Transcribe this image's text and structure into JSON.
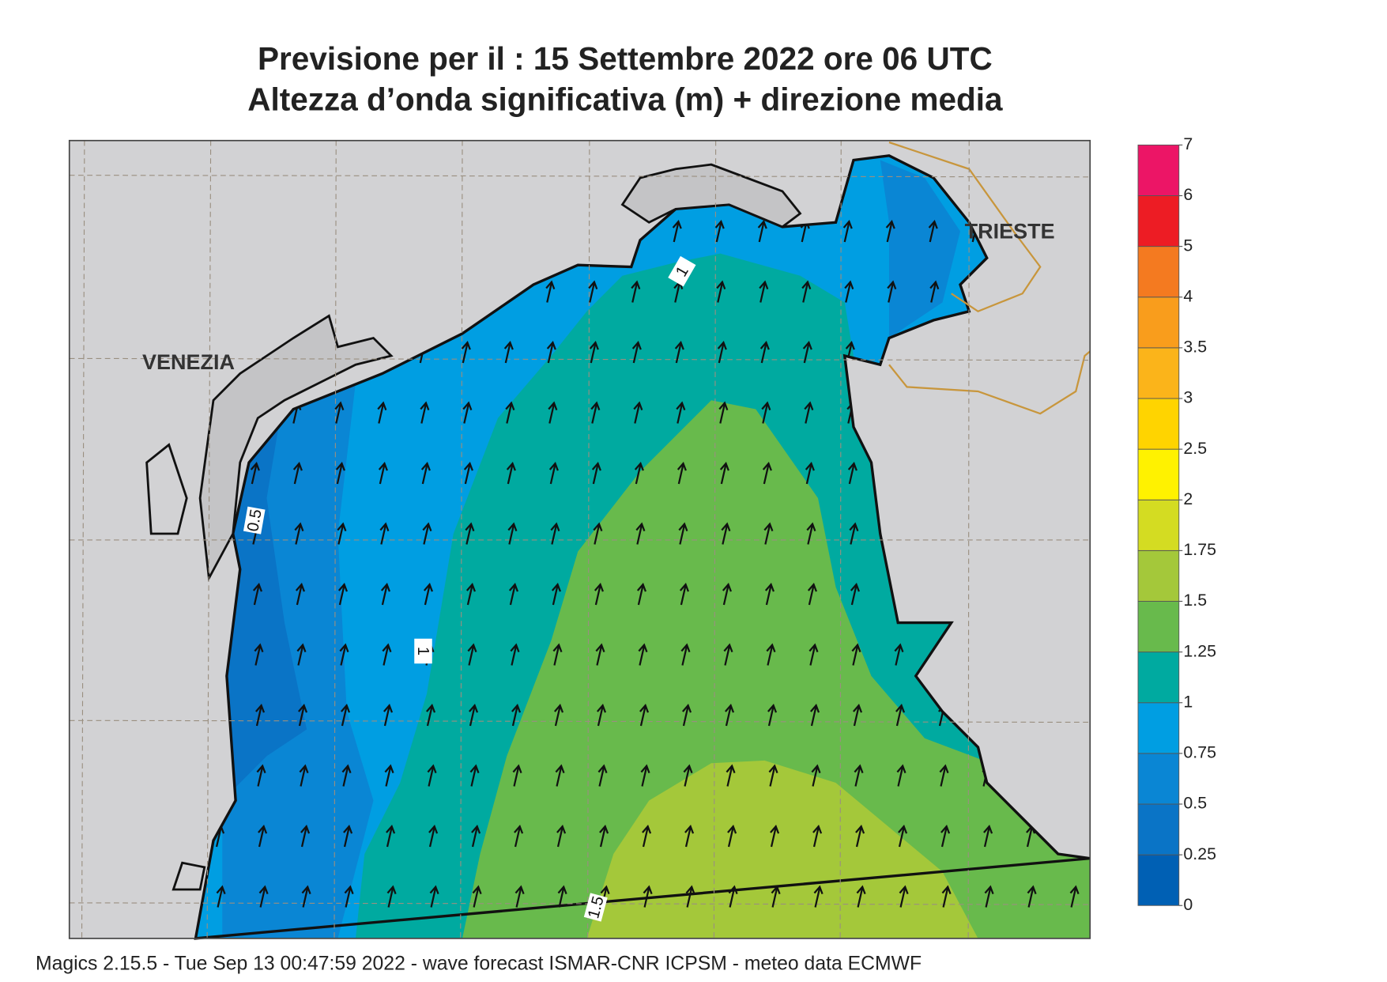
{
  "title": "Previsione per il  :  15 Settembre 2022   ore 06 UTC",
  "subtitle": "Altezza d’onda significativa (m) + direzione media",
  "places": [
    "VENEZIA",
    "TRIESTE"
  ],
  "contour_labels": [
    1,
    0.5,
    1,
    1.5
  ],
  "colorbar": {
    "levels": [
      0,
      0.25,
      0.5,
      0.75,
      1,
      1.25,
      1.5,
      1.75,
      2,
      2.5,
      3,
      3.5,
      4,
      5,
      6,
      7
    ],
    "colors": [
      "#0060b4",
      "#0a74c6",
      "#0a86d4",
      "#009ee2",
      "#00aaa0",
      "#68ba4c",
      "#a4c83a",
      "#d4dc22",
      "#fff200",
      "#ffd400",
      "#fbb41a",
      "#f99d1c",
      "#f47a20",
      "#ed1c24",
      "#ec1566"
    ]
  },
  "footer": "Magics 2.15.5 - Tue Sep 13 00:47:59 2022 - wave forecast  ISMAR-CNR  ICPSM - meteo data   ECMWF"
}
